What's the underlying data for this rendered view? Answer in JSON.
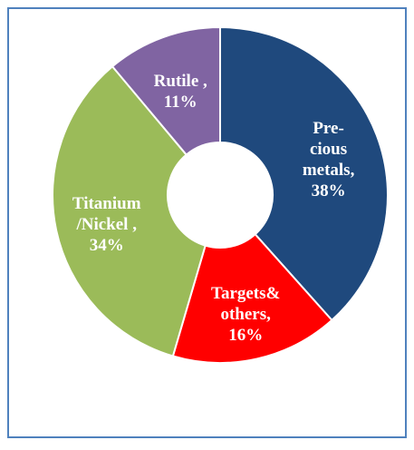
{
  "chart_data": {
    "type": "donut",
    "categories": [
      "Pre-\ncious\nmetals,",
      "Targets&\nothers,",
      "Titanium\n/Nickel ,",
      "Rutile ,"
    ],
    "values": [
      38,
      16,
      34,
      11
    ],
    "value_labels": [
      "38%",
      "16%",
      "34%",
      "11%"
    ],
    "colors": [
      "#1f497d",
      "#ff0000",
      "#9bbb59",
      "#8064a2"
    ]
  }
}
